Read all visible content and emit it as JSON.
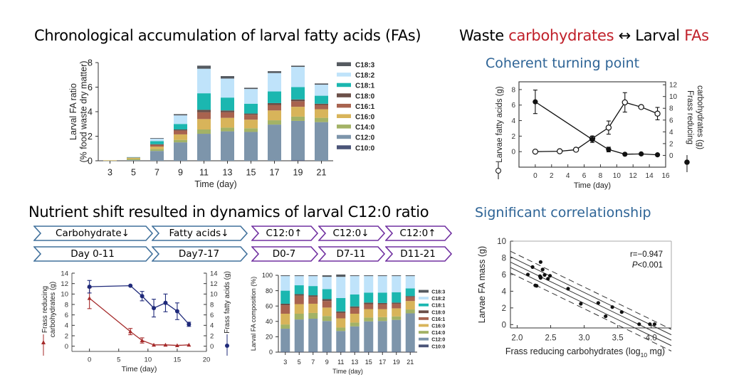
{
  "headings": {
    "top_left": "Chronological accumulation of larval fatty acids (FAs)",
    "top_right_part1": "Waste ",
    "top_right_part2": "carbohydrates",
    "top_right_part3": " ↔ Larval ",
    "top_right_part4": "FAs",
    "coherent": "Coherent turning point",
    "bottom_left": "Nutrient shift resulted in dynamics of larval C12:0 ratio",
    "significant": "Significant correlationship"
  },
  "colors": {
    "heading_blue": "#2e6496",
    "highlight_red": "#c0202a",
    "chevron_blue": "#41719c",
    "chevron_purple": "#7030a0",
    "series_red": "#a52a2a",
    "series_navy": "#1f2a7a"
  },
  "chevrons": {
    "blue_row1": [
      "Carbohydrate↓",
      "Fatty acids↓"
    ],
    "blue_row2": [
      "Day 0-11",
      "Day7-17"
    ],
    "purple_row1": [
      "C12:0↑",
      "C12:0↓",
      "C12:0↑"
    ],
    "purple_row2": [
      "D0-7",
      "D7-11",
      "D11-21"
    ]
  },
  "chart_data": [
    {
      "id": "fa-accumulation",
      "type": "bar",
      "stacked": true,
      "title": "",
      "xlabel": "Time (day)",
      "ylabel": "Larval FA ratio",
      "ylabel2": "(% food waste dry matter)",
      "ylim": [
        0,
        8
      ],
      "yticks": [
        0,
        2,
        4,
        6,
        8
      ],
      "categories": [
        "3",
        "5",
        "7",
        "9",
        "11",
        "13",
        "15",
        "17",
        "19",
        "21"
      ],
      "legend_position": "right",
      "series": [
        {
          "name": "C10:0",
          "color": "#4a5478",
          "values": [
            0,
            0,
            0,
            0,
            0,
            0,
            0,
            0,
            0.05,
            0
          ]
        },
        {
          "name": "C12:0",
          "color": "#7d95ab",
          "values": [
            0.02,
            0.05,
            0.8,
            1.5,
            2.2,
            2.4,
            2.35,
            2.95,
            3.2,
            3.15
          ]
        },
        {
          "name": "C14:0",
          "color": "#a3b266",
          "values": [
            0.01,
            0.1,
            0.15,
            0.2,
            0.35,
            0.3,
            0.3,
            0.35,
            0.35,
            0.35
          ]
        },
        {
          "name": "C16:0",
          "color": "#d8b45a",
          "values": [
            0.01,
            0.1,
            0.2,
            0.45,
            0.85,
            0.8,
            0.7,
            0.8,
            0.8,
            0.7
          ]
        },
        {
          "name": "C16:1",
          "color": "#a8634f",
          "values": [
            0,
            0.03,
            0.15,
            0.3,
            0.55,
            0.45,
            0.4,
            0.45,
            0.45,
            0.35
          ]
        },
        {
          "name": "C18:0",
          "color": "#6b4f48",
          "values": [
            0,
            0.01,
            0.05,
            0.1,
            0.2,
            0.15,
            0.1,
            0.15,
            0.15,
            0.1
          ]
        },
        {
          "name": "C18:1",
          "color": "#1bb7b0",
          "values": [
            0,
            0.01,
            0.25,
            0.45,
            1.35,
            1.05,
            0.8,
            0.95,
            1.0,
            0.65
          ]
        },
        {
          "name": "C18:2",
          "color": "#bfe3fa",
          "values": [
            0,
            0.01,
            0.2,
            0.7,
            2.0,
            1.55,
            1.2,
            1.5,
            1.65,
            0.9
          ]
        },
        {
          "name": "C18:3",
          "color": "#555a60",
          "values": [
            0,
            0.0,
            0.05,
            0.1,
            0.25,
            0.2,
            0.1,
            0.15,
            0.1,
            0.1
          ]
        }
      ]
    },
    {
      "id": "turning-point",
      "type": "line",
      "xlabel": "Time (day)",
      "xlim": [
        -2,
        16
      ],
      "xticks": [
        0,
        2,
        4,
        6,
        8,
        10,
        12,
        14,
        16
      ],
      "ylabel": "Larvae fatty acids (g)",
      "ylim": [
        -2,
        9
      ],
      "yticks": [
        0,
        2,
        4,
        6,
        8
      ],
      "ylabel_right": "Frass reducing carbohydrates (g)",
      "ylim_right": [
        -2,
        12.5
      ],
      "yticks_right": [
        0,
        2,
        4,
        6,
        8,
        10,
        12
      ],
      "series": [
        {
          "name": "Larvae fatty acids",
          "axis": "left",
          "marker": "open-circle",
          "x": [
            0,
            3,
            5,
            7,
            9,
            11,
            13,
            15
          ],
          "y": [
            0,
            0.05,
            0.25,
            1.7,
            3.1,
            6.35,
            5.75,
            4.9
          ],
          "err": [
            0,
            0,
            0,
            0.3,
            0.85,
            1.25,
            0,
            0.8
          ]
        },
        {
          "name": "Frass reducing carbohydrates",
          "axis": "right",
          "marker": "filled-circle",
          "x": [
            0,
            7,
            9,
            11,
            13,
            15
          ],
          "y": [
            9.1,
            2.7,
            1.0,
            0.2,
            0.25,
            0.1
          ],
          "err": [
            2.0,
            0.5,
            0.4,
            0,
            0,
            0
          ]
        }
      ]
    },
    {
      "id": "frass-dynamics",
      "type": "line",
      "xlabel": "Time (day)",
      "xlim": [
        -3,
        20
      ],
      "xticks": [
        0,
        5,
        10,
        15,
        20
      ],
      "ylabel": "Frass reducing carbohydrates (g)",
      "ylim": [
        -1,
        14
      ],
      "yticks": [
        0,
        2,
        4,
        6,
        8,
        10,
        12,
        14
      ],
      "ylabel_right": "Frass fatty acids (g)",
      "ylim_right": [
        -1,
        14
      ],
      "yticks_right": [
        0,
        2,
        4,
        6,
        8,
        10,
        12,
        14
      ],
      "series": [
        {
          "name": "Frass reducing carbohydrates",
          "axis": "left",
          "marker": "triangle",
          "color": "#a52a2a",
          "x": [
            0,
            7,
            9,
            11,
            13,
            15,
            17
          ],
          "y": [
            9.2,
            2.8,
            1.1,
            0.25,
            0.25,
            0.15,
            0.25
          ],
          "err": [
            2.0,
            0.6,
            0.5,
            0,
            0,
            0,
            0
          ]
        },
        {
          "name": "Frass fatty acids",
          "axis": "right",
          "marker": "filled-circle",
          "color": "#1f2a7a",
          "x": [
            0,
            7,
            9,
            11,
            13,
            15,
            17
          ],
          "y": [
            11.4,
            11.6,
            9.6,
            7.3,
            8.3,
            6.7,
            4.2
          ],
          "err": [
            1.2,
            0,
            0.9,
            1.7,
            1.7,
            1.6,
            0.4
          ]
        }
      ]
    },
    {
      "id": "fa-composition",
      "type": "bar",
      "stacked": true,
      "xlabel": "Time (day)",
      "ylabel": "Larval FA composition (%)",
      "ylim": [
        0,
        100
      ],
      "yticks": [
        0,
        20,
        40,
        60,
        80,
        100
      ],
      "categories": [
        "3",
        "5",
        "7",
        "9",
        "11",
        "13",
        "15",
        "17",
        "19",
        "21"
      ],
      "legend_position": "right",
      "series": [
        {
          "name": "C10:0",
          "color": "#4a5478",
          "values": [
            0.5,
            0.5,
            0.5,
            0.5,
            0.5,
            0.5,
            0.5,
            0.5,
            0.5,
            0.5
          ]
        },
        {
          "name": "C12:0",
          "color": "#7d95ab",
          "values": [
            30,
            42,
            43,
            40,
            27,
            33,
            39.5,
            40,
            41.5,
            50
          ]
        },
        {
          "name": "C14:0",
          "color": "#a3b266",
          "values": [
            5.5,
            7.5,
            7.5,
            6.5,
            4.5,
            5,
            5,
            5,
            4.5,
            5
          ]
        },
        {
          "name": "C16:0",
          "color": "#d8b45a",
          "values": [
            14,
            12.5,
            12,
            11,
            12,
            11.5,
            11,
            10.5,
            10.5,
            11
          ]
        },
        {
          "name": "C16:1",
          "color": "#a8634f",
          "values": [
            11,
            11,
            9,
            8.5,
            7,
            7.5,
            6.5,
            6.5,
            6,
            5
          ]
        },
        {
          "name": "C18:0",
          "color": "#6b4f48",
          "values": [
            2,
            2,
            2,
            2.5,
            2,
            2,
            2,
            1.5,
            1.5,
            1.5
          ]
        },
        {
          "name": "C18:1",
          "color": "#1bb7b0",
          "values": [
            17,
            11.5,
            12,
            13,
            17.5,
            15.5,
            13,
            13.5,
            13.5,
            10
          ]
        },
        {
          "name": "C18:2",
          "color": "#bfe3fa",
          "values": [
            19,
            12,
            13,
            16,
            27.5,
            24,
            21.5,
            21.5,
            21,
            16
          ]
        },
        {
          "name": "C18:3",
          "color": "#555a60",
          "values": [
            1,
            1,
            1,
            2,
            3,
            1,
            1,
            1,
            1,
            1
          ]
        }
      ]
    },
    {
      "id": "correlation",
      "type": "scatter",
      "xlabel": "Frass reducing carbohydrates (log10 mg)",
      "xlabel_main": "Frass reducing carbohydrates (log",
      "xlabel_sub": "10",
      "xlabel_tail": " mg)",
      "xlim": [
        1.9,
        4.3
      ],
      "xticks": [
        2.0,
        2.5,
        3.0,
        3.5,
        4.0
      ],
      "ylabel": "Larvae FA mass (g)",
      "ylim": [
        -0.4,
        10
      ],
      "yticks": [
        0,
        2,
        4,
        6,
        8,
        10
      ],
      "annotation_r": "r=−0.947",
      "annotation_p_italic": "P",
      "annotation_p_rest": "<0.001",
      "points": {
        "x": [
          2.16,
          2.23,
          2.27,
          2.29,
          2.34,
          2.35,
          2.35,
          2.35,
          2.38,
          2.41,
          2.46,
          2.49,
          2.76,
          2.95,
          3.21,
          3.32,
          3.42,
          3.56,
          3.82,
          3.98,
          4.05
        ],
        "y": [
          6.0,
          6.9,
          4.7,
          4.65,
          5.8,
          5.6,
          7.5,
          5.7,
          6.6,
          5.95,
          5.5,
          5.85,
          4.3,
          2.5,
          2.6,
          1.0,
          2.1,
          1.5,
          0.05,
          0.05,
          0.05
        ]
      },
      "regression": {
        "slope": -3.9,
        "intercept": 14.9
      },
      "confidence_band": 0.65,
      "prediction_band": 1.3
    }
  ]
}
